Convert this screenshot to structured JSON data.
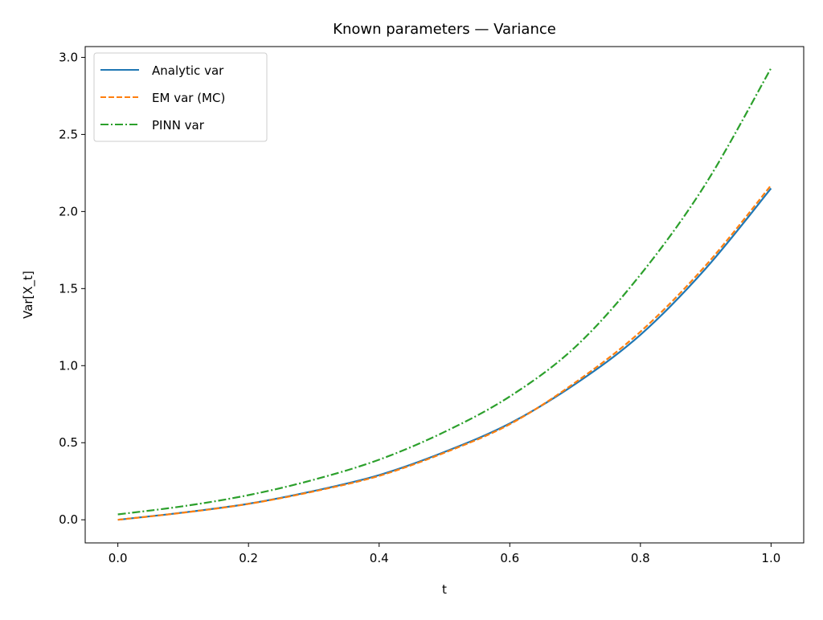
{
  "chart_data": {
    "type": "line",
    "title": "Known parameters — Variance",
    "xlabel": "t",
    "ylabel": "Var[X_t]",
    "xlim": [
      -0.05,
      1.05
    ],
    "ylim": [
      -0.15,
      3.07
    ],
    "xticks": [
      0.0,
      0.2,
      0.4,
      0.6,
      0.8,
      1.0
    ],
    "xtick_labels": [
      "0.0",
      "0.2",
      "0.4",
      "0.6",
      "0.8",
      "1.0"
    ],
    "yticks": [
      0.0,
      0.5,
      1.0,
      1.5,
      2.0,
      2.5,
      3.0
    ],
    "ytick_labels": [
      "0.0",
      "0.5",
      "1.0",
      "1.5",
      "2.0",
      "2.5",
      "3.0"
    ],
    "grid": false,
    "legend_position": "top-left",
    "x": [
      0.0,
      0.1,
      0.2,
      0.3,
      0.4,
      0.5,
      0.6,
      0.7,
      0.8,
      0.9,
      1.0
    ],
    "series": [
      {
        "name": "Analytic var",
        "color": "#1f77b4",
        "linestyle": "solid",
        "values": [
          0.0,
          0.047,
          0.104,
          0.187,
          0.29,
          0.44,
          0.625,
          0.88,
          1.2,
          1.63,
          2.15
        ]
      },
      {
        "name": "EM var (MC)",
        "color": "#ff7f0e",
        "linestyle": "dashed",
        "values": [
          0.0,
          0.046,
          0.103,
          0.184,
          0.285,
          0.435,
          0.62,
          0.89,
          1.22,
          1.65,
          2.17
        ]
      },
      {
        "name": "PINN var",
        "color": "#2ca02c",
        "linestyle": "dashdot",
        "values": [
          0.035,
          0.088,
          0.16,
          0.26,
          0.39,
          0.57,
          0.8,
          1.12,
          1.59,
          2.18,
          2.93
        ]
      }
    ]
  }
}
